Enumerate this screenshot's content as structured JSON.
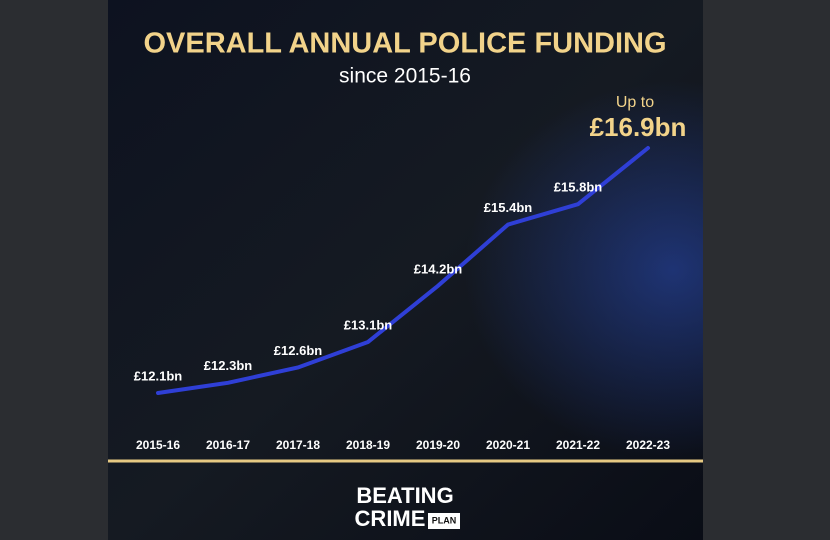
{
  "chart_data": {
    "type": "line",
    "title": "OVERALL ANNUAL POLICE FUNDING",
    "subtitle": "since 2015-16",
    "categories": [
      "2015-16",
      "2016-17",
      "2017-18",
      "2018-19",
      "2019-20",
      "2020-21",
      "2021-22",
      "2022-23"
    ],
    "values": [
      12.1,
      12.3,
      12.6,
      13.1,
      14.2,
      15.4,
      15.8,
      16.9
    ],
    "value_labels": [
      "£12.1bn",
      "£12.3bn",
      "£12.6bn",
      "£13.1bn",
      "£14.2bn",
      "£15.4bn",
      "£15.8bn",
      "£16.9bn"
    ],
    "annotation": "Up to",
    "color": "#2f3fd6"
  },
  "logo": {
    "line1": "BEATING",
    "line2": "CRIME",
    "line3": "PLAN"
  }
}
